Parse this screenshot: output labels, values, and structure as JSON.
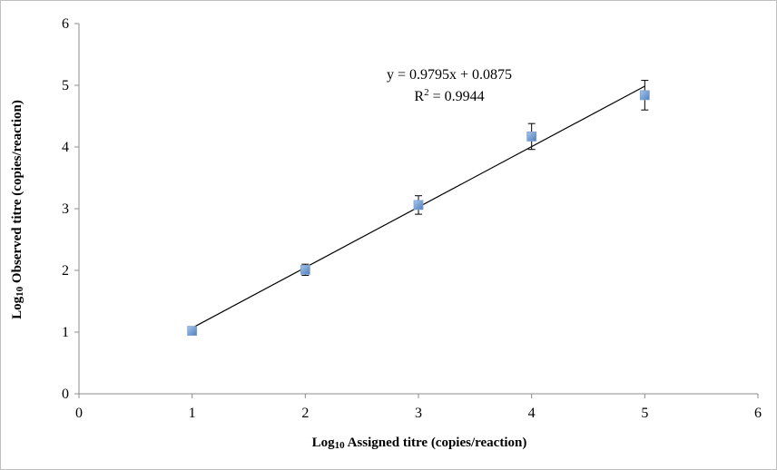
{
  "chart_data": {
    "type": "scatter",
    "xlabel_prefix": "Log",
    "xlabel_sub": "10",
    "xlabel_rest": " Assigned titre (copies/reaction)",
    "ylabel_prefix": "Log",
    "ylabel_sub": "10",
    "ylabel_rest": " Observed titre (copies/reaction)",
    "xlim": [
      0,
      6
    ],
    "ylim": [
      0,
      6
    ],
    "x_ticks": [
      "0",
      "1",
      "2",
      "3",
      "4",
      "5",
      "6"
    ],
    "y_ticks": [
      "0",
      "1",
      "2",
      "3",
      "4",
      "5",
      "6"
    ],
    "grid": false,
    "legend": "none",
    "points": [
      {
        "x": 1,
        "y": 1.02,
        "err": 0.03
      },
      {
        "x": 2,
        "y": 2.01,
        "err": 0.09
      },
      {
        "x": 3,
        "y": 3.06,
        "err": 0.15
      },
      {
        "x": 4,
        "y": 4.17,
        "err": 0.21
      },
      {
        "x": 5,
        "y": 4.84,
        "err": 0.24
      }
    ],
    "trendline": {
      "slope": 0.9795,
      "intercept": 0.0875,
      "x_from": 1,
      "x_to": 5
    },
    "equation_text": "y = 0.9795x + 0.0875",
    "r2_prefix": "R",
    "r2_sup": "2",
    "r2_rest": " = 0.9944",
    "colors": {
      "marker_fill": "#4f81bd",
      "marker_edge": "#7aa2d6",
      "line": "#000000",
      "axis": "#8c8c8c"
    }
  }
}
